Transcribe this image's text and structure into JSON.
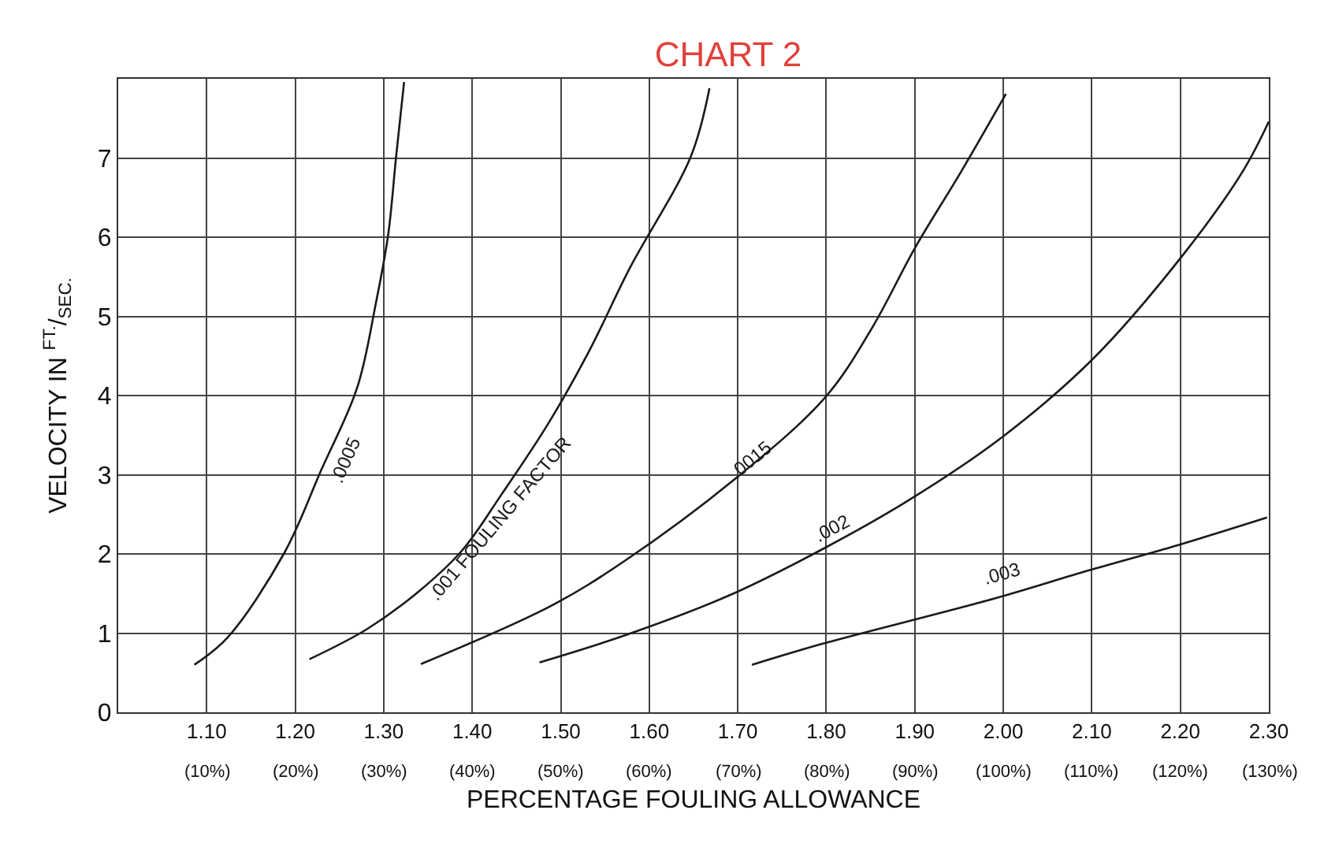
{
  "chart_data": {
    "type": "line",
    "title": "CHART 2",
    "xlabel": "PERCENTAGE FOULING ALLOWANCE",
    "ylabel": "VELOCITY IN $^{FT.}$/$_{SEC.}$",
    "xlim": [
      1.0,
      2.3
    ],
    "ylim": [
      0,
      8
    ],
    "xticks": [
      {
        "value": 1.1,
        "label": "1.10"
      },
      {
        "value": 1.2,
        "label": "1.20"
      },
      {
        "value": 1.3,
        "label": "1.30"
      },
      {
        "value": 1.4,
        "label": "1.40"
      },
      {
        "value": 1.5,
        "label": "1.50"
      },
      {
        "value": 1.6,
        "label": "1.60"
      },
      {
        "value": 1.7,
        "label": "1.70"
      },
      {
        "value": 1.8,
        "label": "1.80"
      },
      {
        "value": 1.9,
        "label": "1.90"
      },
      {
        "value": 2.0,
        "label": "2.00"
      },
      {
        "value": 2.1,
        "label": "2.10"
      },
      {
        "value": 2.2,
        "label": "2.20"
      },
      {
        "value": 2.3,
        "label": "2.30"
      }
    ],
    "yticks": [
      0,
      1,
      2,
      3,
      4,
      5,
      6,
      7
    ],
    "annotations": [
      "(10%)",
      "(20%)",
      "(30%)",
      "(40%)",
      "(50%)",
      "(60%)",
      "(70%)",
      "(80%)",
      "(90%)",
      "(100%)",
      "(110%)",
      "(120%)",
      "(130%)"
    ],
    "grid": true,
    "legend": false,
    "marker": "none",
    "line_style": "solid",
    "series": [
      {
        "name": ".0005",
        "color": "#1a1a1a",
        "x": [
          1.086,
          1.124,
          1.188,
          1.229,
          1.27,
          1.291,
          1.305,
          1.314,
          1.323
        ],
        "values": [
          0.6,
          0.95,
          2.02,
          3.05,
          4.1,
          5.16,
          6.03,
          7.02,
          7.96
        ]
      },
      {
        "name": ".001 FOULING FACTOR",
        "color": "#1a1a1a",
        "x": [
          1.216,
          1.281,
          1.34,
          1.389,
          1.433,
          1.485,
          1.532,
          1.578,
          1.647,
          1.668
        ],
        "values": [
          0.67,
          1.05,
          1.53,
          2.05,
          2.75,
          3.63,
          4.56,
          5.61,
          7.02,
          7.88
        ]
      },
      {
        "name": ".0015",
        "color": "#1a1a1a",
        "x": [
          1.342,
          1.49,
          1.572,
          1.695,
          1.799,
          1.852,
          1.9,
          1.953,
          2.003
        ],
        "values": [
          0.61,
          1.35,
          1.91,
          2.93,
          3.98,
          4.86,
          5.86,
          6.84,
          7.81
        ]
      },
      {
        "name": ".002",
        "color": "#1a1a1a",
        "x": [
          1.476,
          1.572,
          1.689,
          1.794,
          1.892,
          1.997,
          2.101,
          2.204,
          2.271,
          2.3
        ],
        "values": [
          0.63,
          0.97,
          1.47,
          2.05,
          2.67,
          3.46,
          4.46,
          5.79,
          6.84,
          7.46
        ]
      },
      {
        "name": ".003",
        "color": "#1a1a1a",
        "x": [
          1.716,
          1.794,
          1.991,
          2.096,
          2.197,
          2.298
        ],
        "values": [
          0.6,
          0.86,
          1.44,
          1.79,
          2.11,
          2.46
        ]
      }
    ]
  }
}
